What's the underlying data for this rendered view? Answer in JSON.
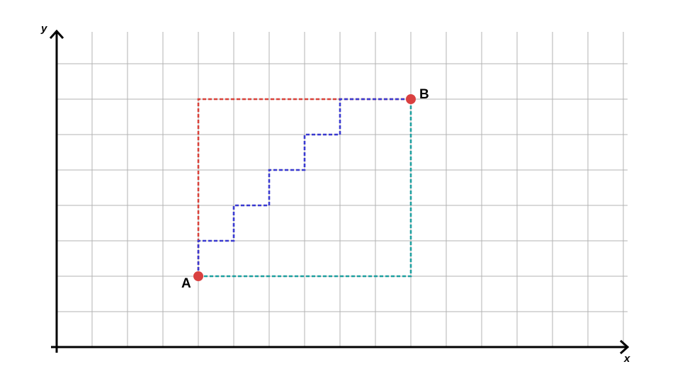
{
  "diagram": {
    "axes": {
      "x_label": "x",
      "y_label": "y"
    },
    "grid": {
      "shown": true,
      "x_max": 16,
      "y_max": 9,
      "color": "#b3b3b3"
    },
    "points": {
      "A": {
        "label": "A",
        "x": 4,
        "y": 2,
        "color": "#d94040"
      },
      "B": {
        "label": "B",
        "x": 10,
        "y": 7,
        "color": "#d94040"
      }
    },
    "paths": [
      {
        "name": "red-path",
        "style": "dashed",
        "color": "#d9433b",
        "vertices": [
          [
            4,
            2
          ],
          [
            4,
            7
          ],
          [
            10,
            7
          ]
        ]
      },
      {
        "name": "teal-path",
        "style": "dashed",
        "color": "#1fa0a0",
        "vertices": [
          [
            4,
            2
          ],
          [
            10,
            2
          ],
          [
            10,
            7
          ]
        ]
      },
      {
        "name": "blue-staircase-path",
        "style": "dashed",
        "color": "#3a3ad0",
        "vertices": [
          [
            4,
            2
          ],
          [
            4,
            3
          ],
          [
            5,
            3
          ],
          [
            5,
            4
          ],
          [
            6,
            4
          ],
          [
            6,
            5
          ],
          [
            7,
            5
          ],
          [
            7,
            6
          ],
          [
            8,
            6
          ],
          [
            8,
            7
          ],
          [
            10,
            7
          ]
        ]
      }
    ]
  }
}
